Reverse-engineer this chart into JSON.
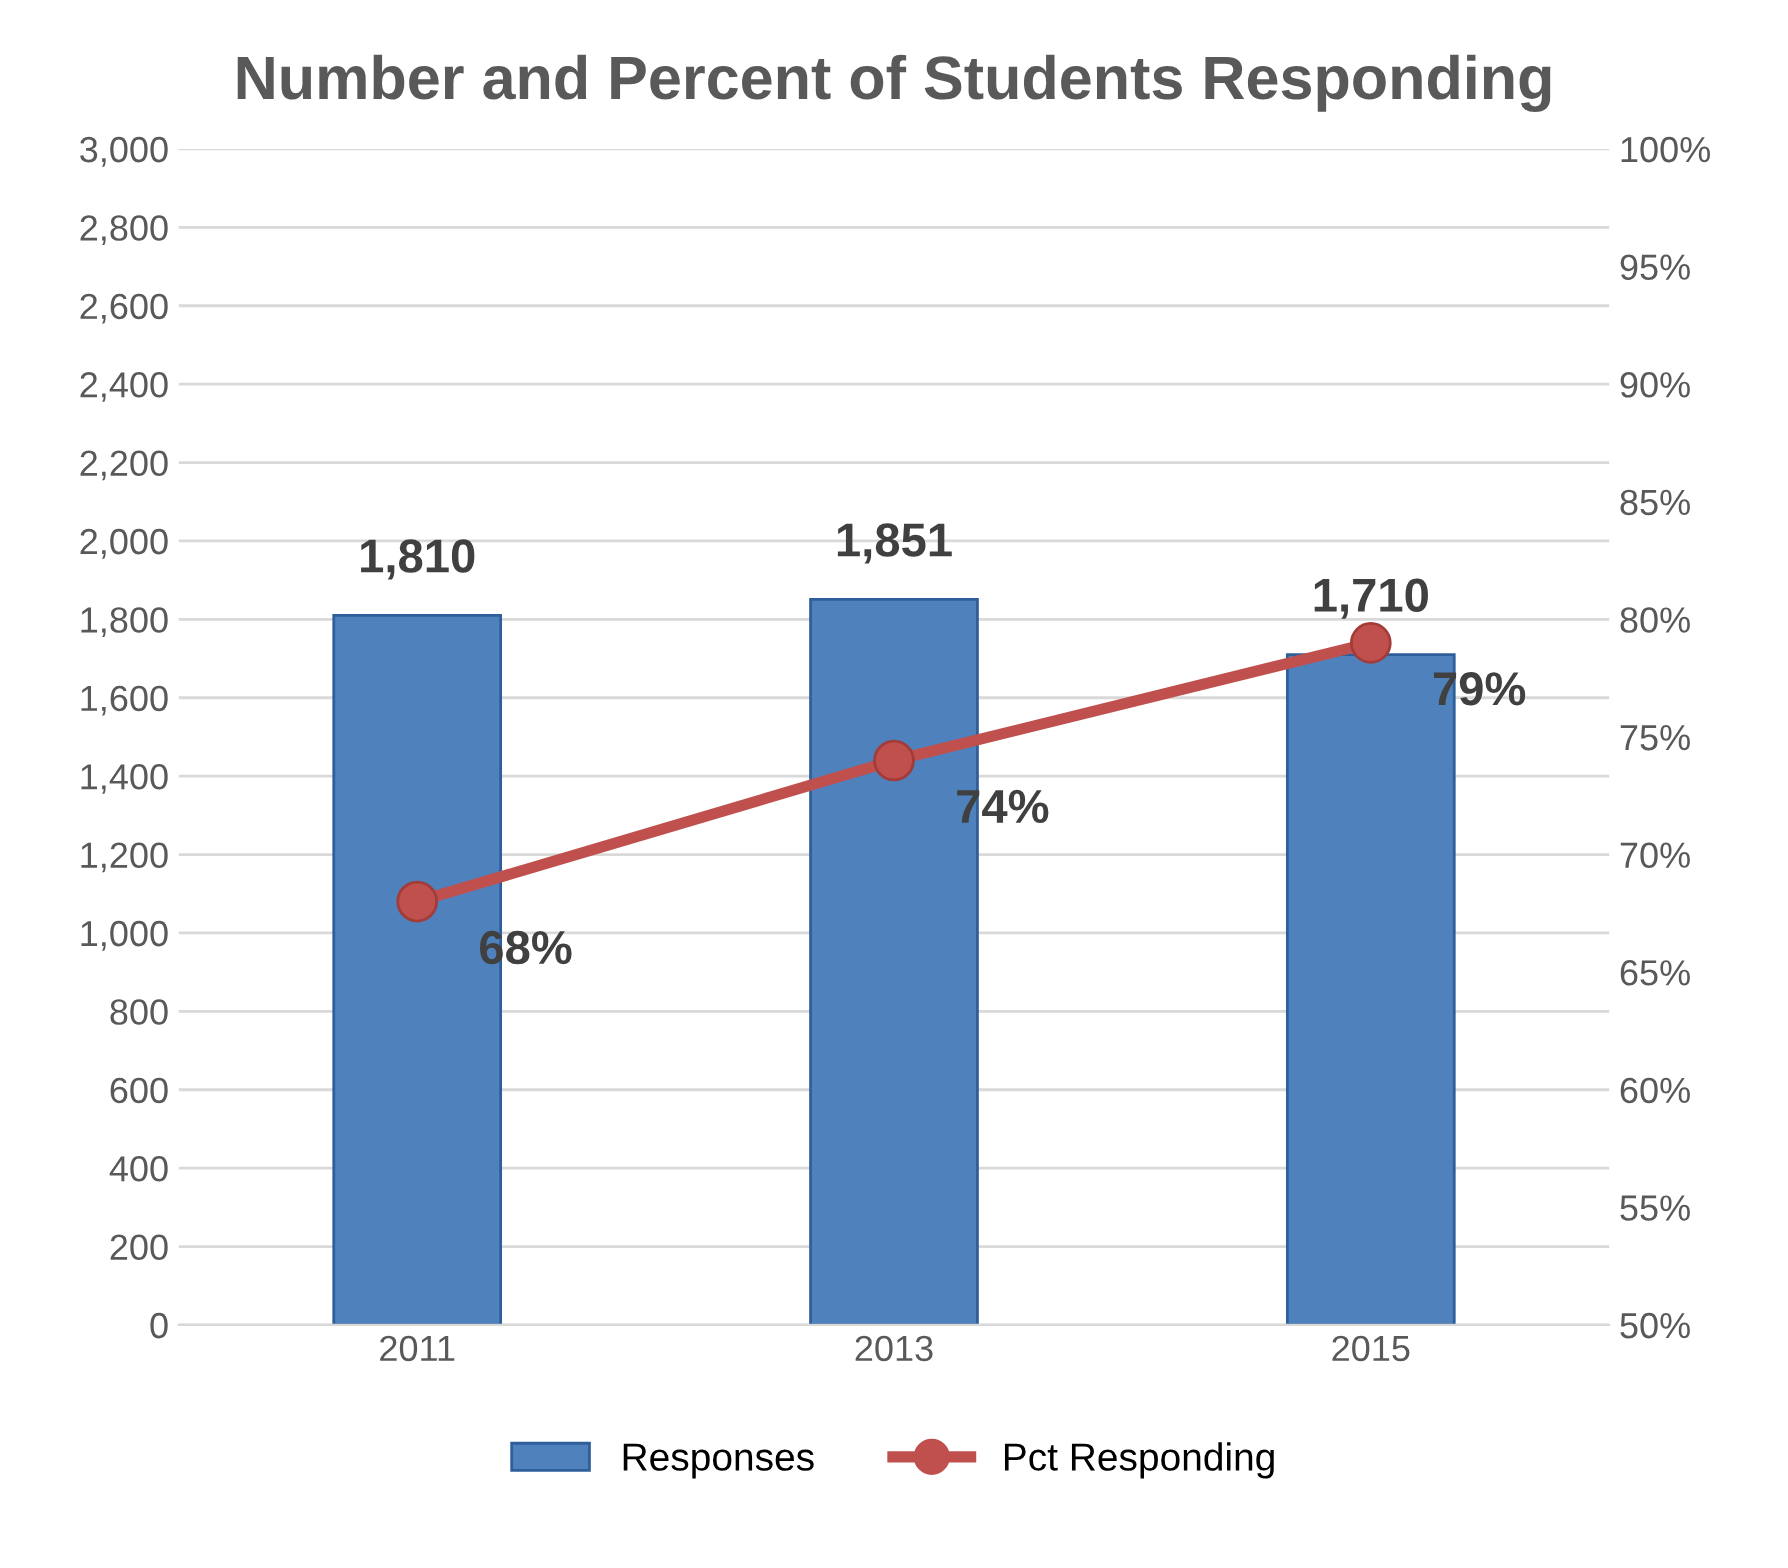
{
  "chart_data": {
    "type": "bar",
    "title": "Number and Percent of Students Responding",
    "categories": [
      "2011",
      "2013",
      "2015"
    ],
    "series": [
      {
        "name": "Responses",
        "color": "#4f81bd",
        "values": [
          1810,
          1851,
          1710
        ],
        "value_labels": [
          "1,810",
          "1,851",
          "1,710"
        ]
      },
      {
        "name": "Pct Responding",
        "type": "line",
        "axis": "y2",
        "color": "#c0504d",
        "values": [
          68,
          74,
          79
        ],
        "value_labels": [
          "68%",
          "74%",
          "79%"
        ],
        "marker": "circle",
        "line_style": "solid"
      }
    ],
    "ylim": [
      0,
      3000
    ],
    "yticks": [
      0,
      200,
      400,
      600,
      800,
      {
        "value": 1000,
        "label": "1,000"
      },
      {
        "value": 1200,
        "label": "1,200"
      },
      {
        "value": 1400,
        "label": "1,400"
      },
      {
        "value": 1600,
        "label": "1,600"
      },
      {
        "value": 1800,
        "label": "1,800"
      },
      {
        "value": 2000,
        "label": "2,000"
      },
      {
        "value": 2200,
        "label": "2,200"
      },
      {
        "value": 2400,
        "label": "2,400"
      },
      {
        "value": 2600,
        "label": "2,600"
      },
      {
        "value": 2800,
        "label": "2,800"
      },
      {
        "value": 3000,
        "label": "3,000"
      }
    ],
    "y2lim": [
      50,
      100
    ],
    "y2ticks": [
      {
        "value": 50,
        "label": "50%"
      },
      {
        "value": 55,
        "label": "55%"
      },
      {
        "value": 60,
        "label": "60%"
      },
      {
        "value": 65,
        "label": "65%"
      },
      {
        "value": 70,
        "label": "70%"
      },
      {
        "value": 75,
        "label": "75%"
      },
      {
        "value": 80,
        "label": "80%"
      },
      {
        "value": 85,
        "label": "85%"
      },
      {
        "value": 90,
        "label": "90%"
      },
      {
        "value": 95,
        "label": "95%"
      },
      {
        "value": 100,
        "label": "100%"
      }
    ],
    "grid": "y",
    "legend": "bottom"
  }
}
